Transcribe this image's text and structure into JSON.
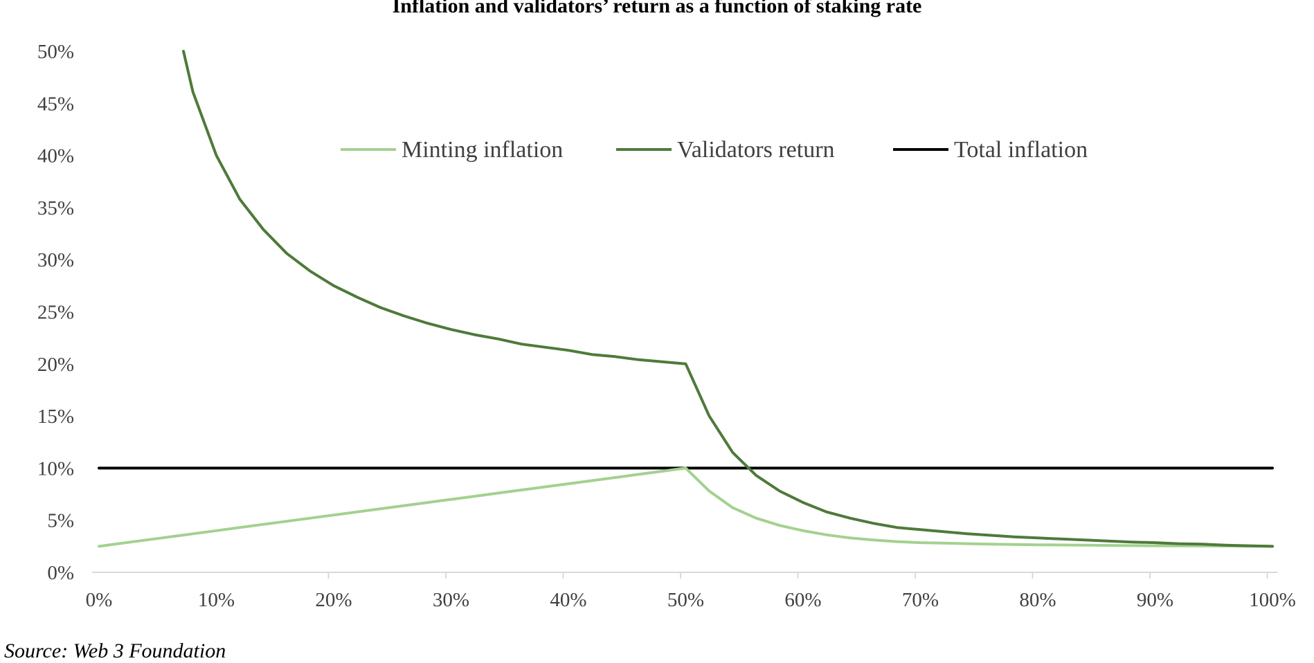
{
  "chart_data": {
    "type": "line",
    "title": "Inflation and validators’ return as a function of staking rate",
    "xlabel": "",
    "ylabel": "",
    "x_ticks": [
      "0%",
      "10%",
      "20%",
      "30%",
      "40%",
      "50%",
      "60%",
      "70%",
      "80%",
      "90%",
      "100%"
    ],
    "y_ticks": [
      "0%",
      "5%",
      "10%",
      "15%",
      "20%",
      "25%",
      "30%",
      "35%",
      "40%",
      "45%",
      "50%"
    ],
    "xlim": [
      0,
      100
    ],
    "ylim": [
      0,
      50
    ],
    "grid": false,
    "legend_position": "top-center",
    "x": [
      0,
      2,
      4,
      6,
      8,
      10,
      12,
      14,
      16,
      18,
      20,
      22,
      24,
      26,
      28,
      30,
      32,
      34,
      36,
      38,
      40,
      42,
      44,
      46,
      48,
      50,
      52,
      54,
      56,
      58,
      60,
      62,
      64,
      66,
      68,
      70,
      72,
      74,
      76,
      78,
      80,
      82,
      84,
      86,
      88,
      90,
      92,
      94,
      96,
      98,
      100
    ],
    "series": [
      {
        "name": "Minting inflation",
        "color": "#a3d18f",
        "values": [
          2.5,
          2.8,
          3.1,
          3.4,
          3.7,
          4.0,
          4.3,
          4.6,
          4.9,
          5.2,
          5.5,
          5.8,
          6.1,
          6.4,
          6.7,
          7.0,
          7.3,
          7.6,
          7.9,
          8.2,
          8.5,
          8.8,
          9.1,
          9.4,
          9.7,
          10.0,
          7.8,
          6.2,
          5.2,
          4.5,
          4.0,
          3.6,
          3.3,
          3.1,
          2.95,
          2.85,
          2.8,
          2.75,
          2.7,
          2.67,
          2.64,
          2.62,
          2.6,
          2.58,
          2.56,
          2.55,
          2.54,
          2.53,
          2.52,
          2.51,
          2.5
        ]
      },
      {
        "name": "Validators return",
        "color": "#4e7a3a",
        "values": [
          null,
          null,
          null,
          null,
          46.1,
          40.0,
          35.8,
          32.9,
          30.6,
          28.9,
          27.5,
          26.4,
          25.4,
          24.6,
          23.9,
          23.3,
          22.8,
          22.4,
          21.9,
          21.6,
          21.3,
          20.9,
          20.7,
          20.4,
          20.2,
          20.0,
          15.0,
          11.5,
          9.3,
          7.8,
          6.7,
          5.8,
          5.2,
          4.7,
          4.3,
          4.1,
          3.9,
          3.7,
          3.55,
          3.4,
          3.3,
          3.2,
          3.1,
          3.0,
          2.9,
          2.85,
          2.75,
          2.7,
          2.6,
          2.55,
          2.5
        ]
      },
      {
        "name": "Total inflation",
        "color": "#000000",
        "values": [
          10,
          10,
          10,
          10,
          10,
          10,
          10,
          10,
          10,
          10,
          10,
          10,
          10,
          10,
          10,
          10,
          10,
          10,
          10,
          10,
          10,
          10,
          10,
          10,
          10,
          10,
          10,
          10,
          10,
          10,
          10,
          10,
          10,
          10,
          10,
          10,
          10,
          10,
          10,
          10,
          10,
          10,
          10,
          10,
          10,
          10,
          10,
          10,
          10,
          10,
          10
        ]
      }
    ],
    "validators_return_start": [
      7.2,
      50.0
    ]
  },
  "source": "Source: Web 3 Foundation"
}
